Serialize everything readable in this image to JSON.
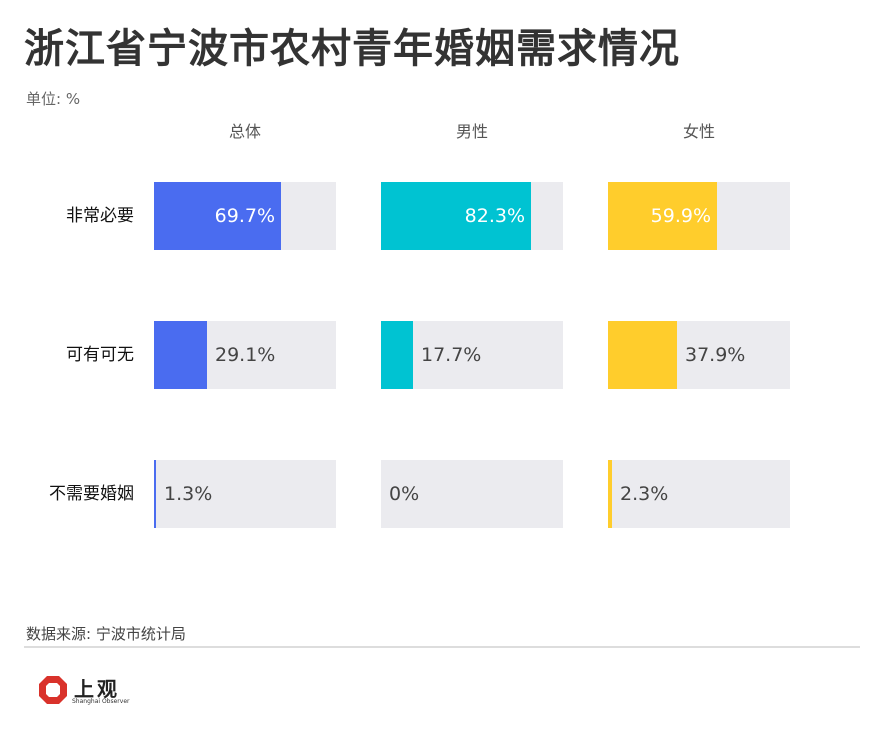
{
  "title": "浙江省宁波市农村青年婚姻需求情况",
  "unit": "单位: %",
  "source": "数据来源: 宁波市统计局",
  "logo": {
    "name": "上观",
    "subtitle": "Shanghai Observer",
    "icon": "octagon-logo-icon",
    "color": "#d9322b"
  },
  "chart_data": {
    "type": "bar",
    "orientation": "horizontal",
    "categories": [
      "非常必要",
      "可有可无",
      "不需要婚姻"
    ],
    "series": [
      {
        "name": "总体",
        "values": [
          69.7,
          29.1,
          1.3
        ],
        "color": "#4a6cf0"
      },
      {
        "name": "男性",
        "values": [
          82.3,
          17.7,
          0
        ],
        "color": "#00c3d2"
      },
      {
        "name": "女性",
        "values": [
          59.9,
          37.9,
          2.3
        ],
        "color": "#ffcd2c"
      }
    ],
    "labels": [
      [
        "69.7%",
        "29.1%",
        "1.3%"
      ],
      [
        "82.3%",
        "17.7%",
        "0%"
      ],
      [
        "59.9%",
        "37.9%",
        "2.3%"
      ]
    ],
    "xlim": [
      0,
      100
    ],
    "track_color": "#ebebef"
  }
}
